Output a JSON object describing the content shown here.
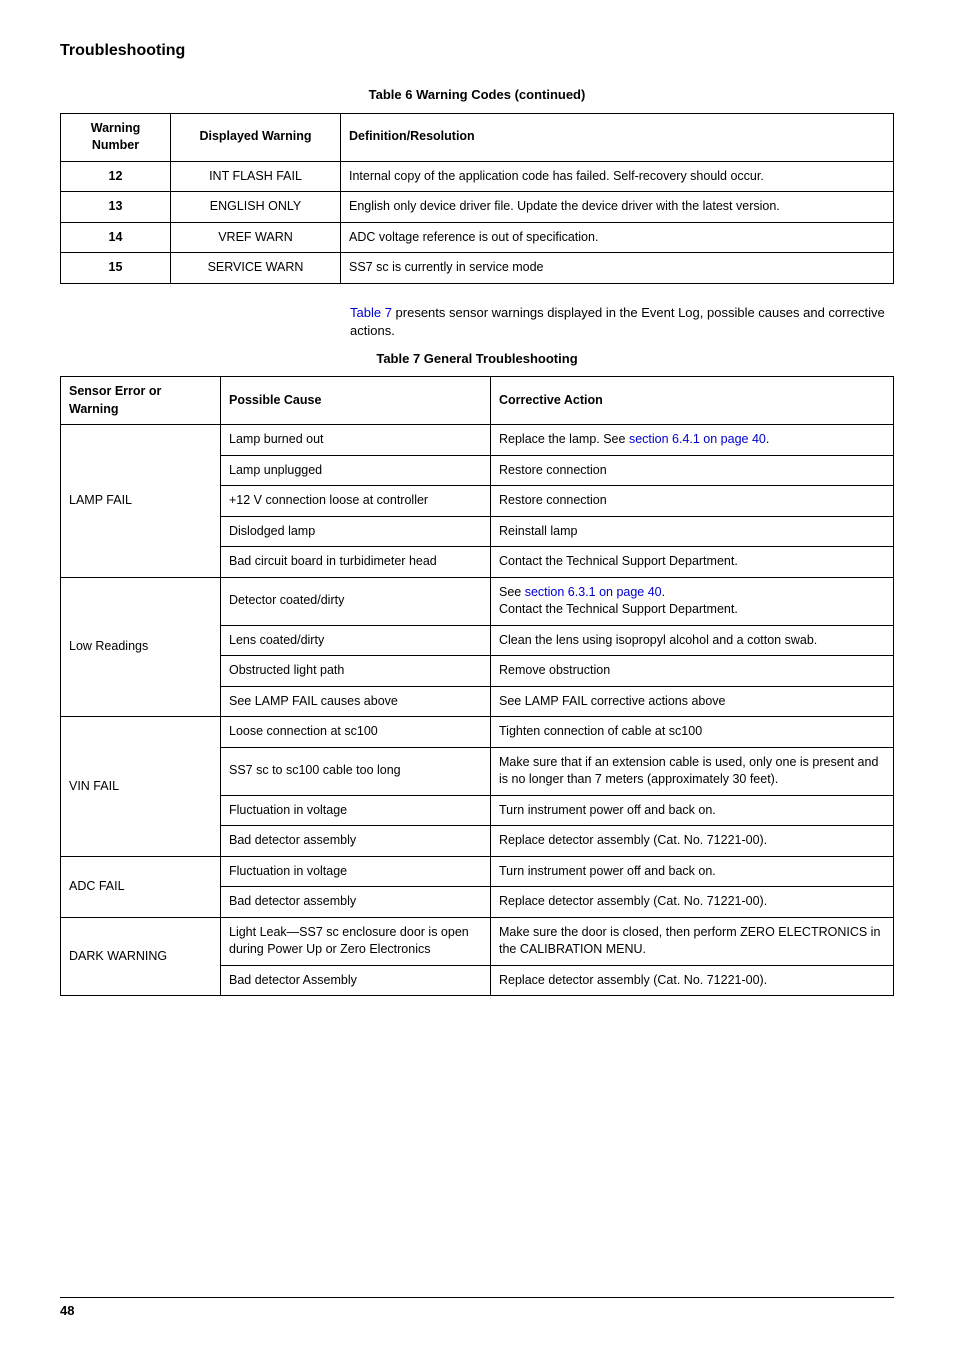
{
  "page": {
    "section_title": "Troubleshooting",
    "page_number": "48"
  },
  "table6": {
    "caption": "Table 6 Warning Codes (continued)",
    "headers": {
      "num": "Warning Number",
      "warn": "Displayed Warning",
      "def": "Definition/Resolution"
    },
    "rows": [
      {
        "num": "12",
        "warn": "INT FLASH FAIL",
        "def": "Internal copy of the application code has failed. Self-recovery should occur."
      },
      {
        "num": "13",
        "warn": "ENGLISH ONLY",
        "def": "English only device driver file. Update the device driver with the latest version."
      },
      {
        "num": "14",
        "warn": "VREF WARN",
        "def": "ADC voltage reference is out of specification."
      },
      {
        "num": "15",
        "warn": "SERVICE WARN",
        "def": "SS7 sc is currently in service mode"
      }
    ]
  },
  "intro": {
    "link_text": "Table 7",
    "rest": " presents sensor warnings displayed in the Event Log, possible causes and corrective actions."
  },
  "table7": {
    "caption": "Table 7 General Troubleshooting",
    "headers": {
      "err": "Sensor Error or Warning",
      "cause": "Possible Cause",
      "action": "Corrective Action"
    },
    "groups": [
      {
        "name": "LAMP FAIL",
        "rows": [
          {
            "cause": "Lamp burned out",
            "action_prefix": "Replace the lamp. See ",
            "action_link": "section 6.4.1 on page 40",
            "action_suffix": "."
          },
          {
            "cause": "Lamp unplugged",
            "action": "Restore connection"
          },
          {
            "cause": "+12 V connection loose at controller",
            "action": "Restore connection"
          },
          {
            "cause": "Dislodged lamp",
            "action": "Reinstall lamp"
          },
          {
            "cause": "Bad circuit board in turbidimeter head",
            "action": "Contact the Technical Support Department."
          }
        ]
      },
      {
        "name": "Low Readings",
        "rows": [
          {
            "cause": "Detector coated/dirty",
            "action_prefix": "See ",
            "action_link": "section 6.3.1 on page 40",
            "action_suffix": ".",
            "action_line2": "Contact the Technical Support Department."
          },
          {
            "cause": "Lens coated/dirty",
            "action": "Clean the lens using isopropyl alcohol and a cotton swab."
          },
          {
            "cause": "Obstructed light path",
            "action": "Remove obstruction"
          },
          {
            "cause": "See LAMP FAIL causes above",
            "action": "See LAMP FAIL corrective actions above"
          }
        ]
      },
      {
        "name": "VIN FAIL",
        "rows": [
          {
            "cause": "Loose connection at sc100",
            "action": "Tighten connection of cable at sc100"
          },
          {
            "cause": "SS7 sc to sc100 cable too long",
            "action": "Make sure that if an extension cable is used, only one is present and is no longer than 7 meters (approximately 30 feet)."
          },
          {
            "cause": "Fluctuation in voltage",
            "action": "Turn instrument power off and back on."
          },
          {
            "cause": "Bad detector assembly",
            "action": "Replace detector assembly (Cat. No. 71221-00)."
          }
        ]
      },
      {
        "name": "ADC FAIL",
        "rows": [
          {
            "cause": "Fluctuation in voltage",
            "action": "Turn instrument power off and back on."
          },
          {
            "cause": "Bad detector assembly",
            "action": "Replace detector assembly (Cat. No. 71221-00)."
          }
        ]
      },
      {
        "name": "DARK WARNING",
        "rows": [
          {
            "cause": "Light Leak—SS7 sc enclosure door is open during Power Up or Zero Electronics",
            "action": "Make sure the door is closed, then perform ZERO ELECTRONICS in the CALIBRATION MENU."
          },
          {
            "cause": "Bad detector Assembly",
            "action": "Replace detector assembly (Cat. No. 71221-00)."
          }
        ]
      }
    ]
  }
}
